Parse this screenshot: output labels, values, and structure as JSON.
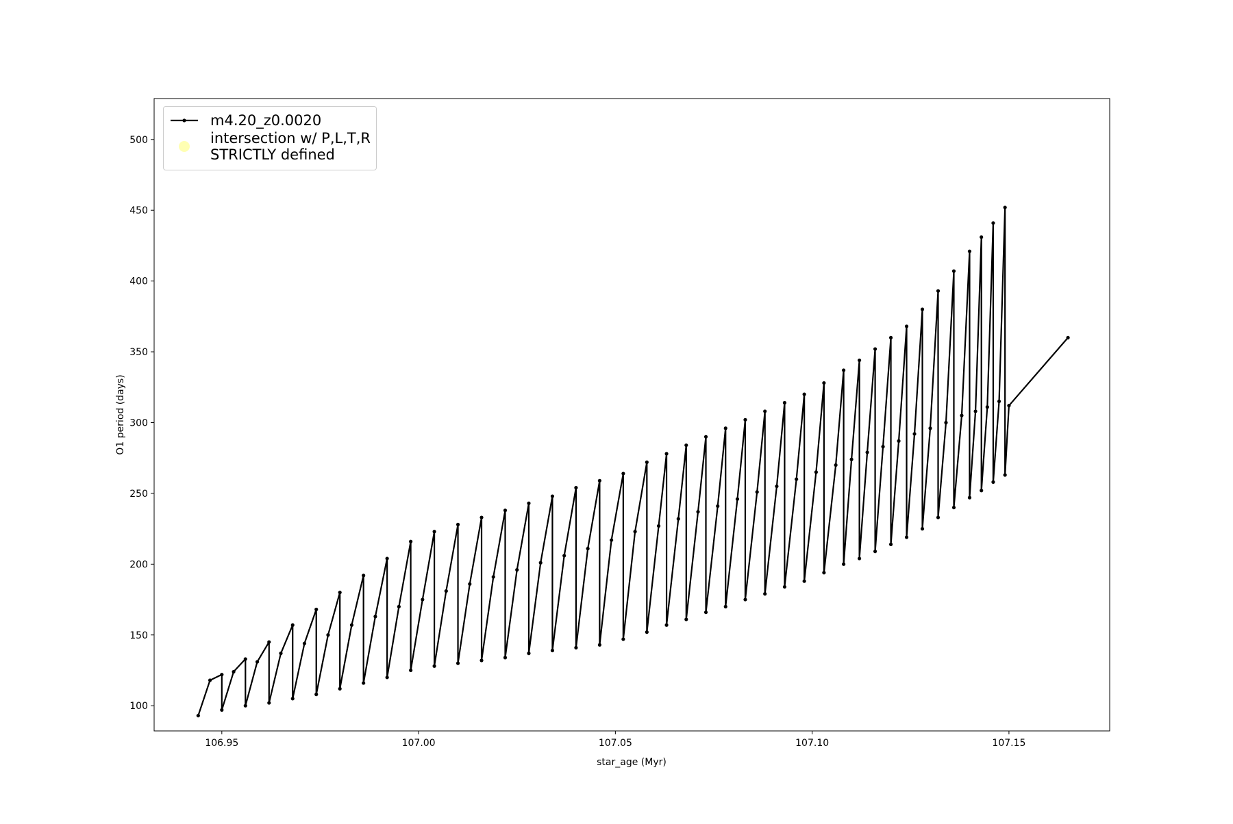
{
  "chart_data": {
    "type": "line",
    "xlabel": "star_age (Myr)",
    "ylabel": "O1 period (days)",
    "xlim": [
      106.9328,
      107.1756
    ],
    "ylim": [
      82.2,
      528.9
    ],
    "xticks": [
      106.95,
      {
        "value": 107.0,
        "label": "107.00"
      },
      107.05,
      {
        "value": 107.1,
        "label": "107.10"
      },
      107.15
    ],
    "yticks": [
      100,
      150,
      200,
      250,
      300,
      350,
      400,
      450,
      500
    ],
    "legend": "upper left",
    "series": [
      {
        "name": "m4.20_z0.0020",
        "color": "#000000",
        "x": [
          106.944,
          106.947,
          106.95,
          106.95,
          106.953,
          106.956,
          106.956,
          106.959,
          106.962,
          106.962,
          106.965,
          106.968,
          106.968,
          106.971,
          106.974,
          106.974,
          106.977,
          106.98,
          106.98,
          106.983,
          106.986,
          106.986,
          106.989,
          106.992,
          106.992,
          106.995,
          106.998,
          106.998,
          107.001,
          107.004,
          107.004,
          107.007,
          107.01,
          107.01,
          107.013,
          107.016,
          107.016,
          107.019,
          107.022,
          107.022,
          107.025,
          107.028,
          107.028,
          107.031,
          107.034,
          107.034,
          107.037,
          107.04,
          107.04,
          107.043,
          107.046,
          107.046,
          107.049,
          107.052,
          107.052,
          107.055,
          107.058,
          107.058,
          107.061,
          107.063,
          107.063,
          107.066,
          107.068,
          107.068,
          107.071,
          107.073,
          107.073,
          107.076,
          107.078,
          107.078,
          107.081,
          107.083,
          107.083,
          107.086,
          107.088,
          107.088,
          107.091,
          107.093,
          107.093,
          107.096,
          107.098,
          107.098,
          107.101,
          107.103,
          107.103,
          107.106,
          107.108,
          107.108,
          107.11,
          107.112,
          107.112,
          107.114,
          107.116,
          107.116,
          107.118,
          107.12,
          107.12,
          107.122,
          107.124,
          107.124,
          107.126,
          107.128,
          107.128,
          107.13,
          107.132,
          107.132,
          107.134,
          107.136,
          107.136,
          107.138,
          107.14,
          107.14,
          107.1415,
          107.143,
          107.143,
          107.1445,
          107.146,
          107.146,
          107.1475,
          107.149,
          107.149,
          107.15,
          107.165
        ],
        "values": [
          93,
          118,
          122,
          97,
          124,
          133,
          100,
          131,
          145,
          102,
          137,
          157,
          105,
          144,
          168,
          108,
          150,
          180,
          112,
          157,
          192,
          116,
          163,
          204,
          120,
          170,
          216,
          125,
          175,
          223,
          128,
          181,
          228,
          130,
          186,
          233,
          132,
          191,
          238,
          134,
          196,
          243,
          137,
          201,
          248,
          139,
          206,
          254,
          141,
          211,
          259,
          143,
          217,
          264,
          147,
          223,
          272,
          152,
          227,
          278,
          157,
          232,
          284,
          161,
          237,
          290,
          166,
          241,
          296,
          170,
          246,
          302,
          175,
          251,
          308,
          179,
          255,
          314,
          184,
          260,
          320,
          188,
          265,
          328,
          194,
          270,
          337,
          200,
          274,
          344,
          204,
          279,
          352,
          209,
          283,
          360,
          214,
          287,
          368,
          219,
          292,
          380,
          225,
          296,
          393,
          233,
          300,
          407,
          240,
          305,
          421,
          247,
          308,
          431,
          252,
          311,
          441,
          258,
          315,
          452,
          263,
          312,
          360
        ]
      },
      {
        "name": "intersection w/ P,L,T,R\nSTRICTLY defined",
        "color": "#ffffb3",
        "marker": "o",
        "x": [],
        "values": []
      }
    ]
  }
}
